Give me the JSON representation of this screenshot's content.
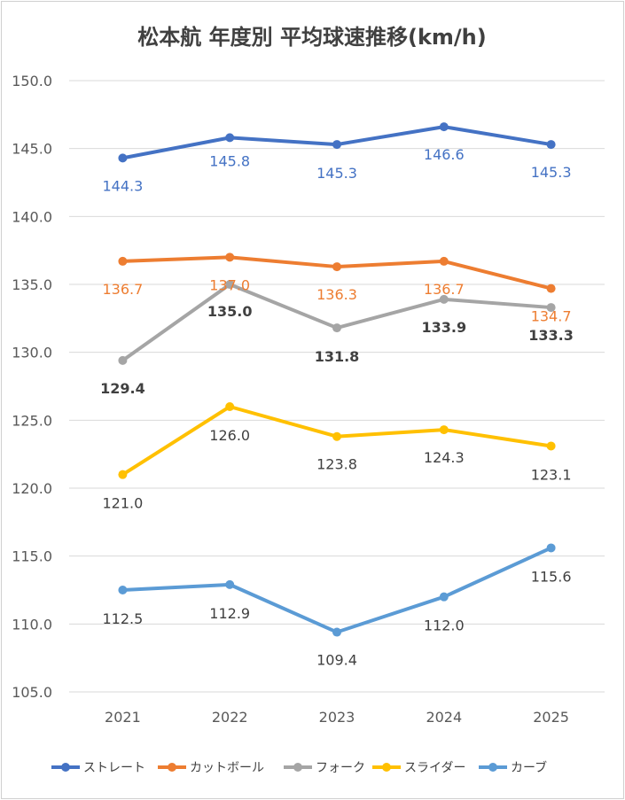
{
  "chart_data": {
    "type": "line",
    "title": "松本航 年度別 平均球速推移(km/h)",
    "xlabel": "",
    "ylabel": "",
    "categories": [
      "2021",
      "2022",
      "2023",
      "2024",
      "2025"
    ],
    "ylim": [
      105,
      150
    ],
    "yticks": [
      "105.0",
      "110.0",
      "115.0",
      "120.0",
      "125.0",
      "130.0",
      "135.0",
      "140.0",
      "145.0",
      "150.0"
    ],
    "grid": true,
    "legend_position": "bottom",
    "series": [
      {
        "name": "ストレート",
        "color": "#4472C4",
        "label_color": "#4472C4",
        "values": [
          144.3,
          145.8,
          145.3,
          146.6,
          145.3
        ],
        "labels": [
          "144.3",
          "145.8",
          "145.3",
          "146.6",
          "145.3"
        ],
        "label_bold": false
      },
      {
        "name": "カットボール",
        "color": "#ED7D31",
        "label_color": "#ED7D31",
        "values": [
          136.7,
          137.0,
          136.3,
          136.7,
          134.7
        ],
        "labels": [
          "136.7",
          "137.0",
          "136.3",
          "136.7",
          "134.7"
        ],
        "label_bold": false
      },
      {
        "name": "フォーク",
        "color": "#A5A5A5",
        "label_color": "#404040",
        "values": [
          129.4,
          135.0,
          131.8,
          133.9,
          133.3
        ],
        "labels": [
          "129.4",
          "135.0",
          "131.8",
          "133.9",
          "133.3"
        ],
        "label_bold": true
      },
      {
        "name": "スライダー",
        "color": "#FFC000",
        "label_color": "#404040",
        "values": [
          121.0,
          126.0,
          123.8,
          124.3,
          123.1
        ],
        "labels": [
          "121.0",
          "126.0",
          "123.8",
          "124.3",
          "123.1"
        ],
        "label_bold": false
      },
      {
        "name": "カーブ",
        "color": "#5B9BD5",
        "label_color": "#404040",
        "values": [
          112.5,
          112.9,
          109.4,
          112.0,
          115.6
        ],
        "labels": [
          "112.5",
          "112.9",
          "109.4",
          "112.0",
          "115.6"
        ],
        "label_bold": false
      }
    ]
  }
}
